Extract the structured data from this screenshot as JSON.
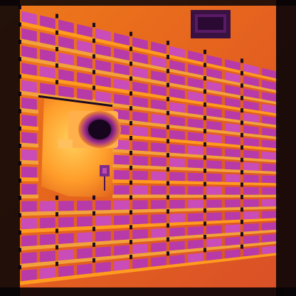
{
  "image": {
    "subject": "thermal-image-wall-panel-tiles",
    "palette": {
      "background": "#e05a1a",
      "hot": "#ff9b1e",
      "warm": "#ffb43a",
      "panel": "#b83aa8",
      "panel_light": "#c94cb8",
      "panel_hot_edge": "#ff7a32",
      "gap_hot": "#f2a23c",
      "gap_cool": "#8a2396",
      "clip": "#1a0a22",
      "dark_frame": "#070307"
    },
    "elements": {
      "tile_grid": "tile-grid",
      "round_fixture": "round-fixture",
      "vent": "wall-vent",
      "small_box": "wall-outlet"
    }
  }
}
